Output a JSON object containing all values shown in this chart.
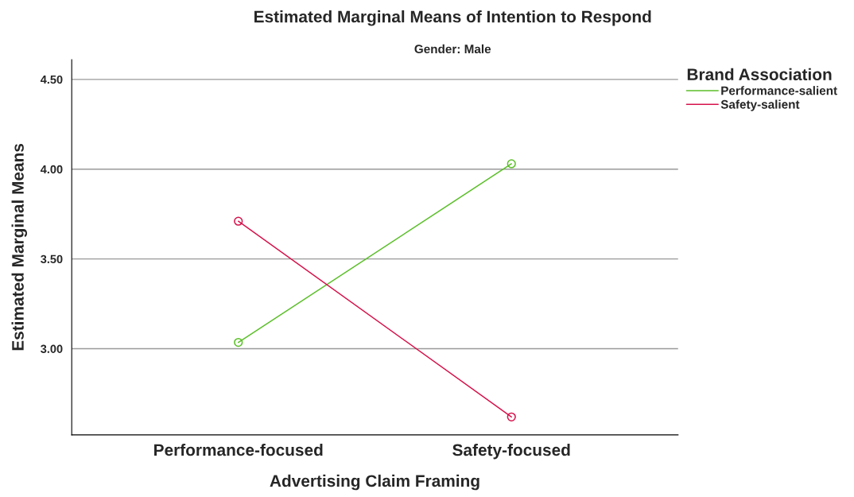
{
  "chart_data": {
    "type": "line",
    "title": "Estimated Marginal Means of Intention to Respond",
    "subtitle": "Gender: Male",
    "xlabel": "Advertising Claim Framing",
    "ylabel": "Estimated Marginal Means",
    "legend_title": "Brand Association",
    "categories": [
      "Performance-focused",
      "Safety-focused"
    ],
    "series": [
      {
        "name": "Performance-salient",
        "color": "#5cbf2a",
        "values": [
          3.035,
          4.03
        ]
      },
      {
        "name": "Safety-salient",
        "color": "#d6134c",
        "values": [
          3.71,
          2.62
        ]
      }
    ],
    "ylim": [
      2.52,
      4.61
    ],
    "yticks": [
      {
        "value": 3.0,
        "label": "3.00"
      },
      {
        "value": 3.5,
        "label": "3.50"
      },
      {
        "value": 4.0,
        "label": "4.00"
      },
      {
        "value": 4.5,
        "label": "4.50"
      }
    ],
    "grid": "y",
    "legend": "top right",
    "marker": "circle",
    "line_style": "solid"
  }
}
